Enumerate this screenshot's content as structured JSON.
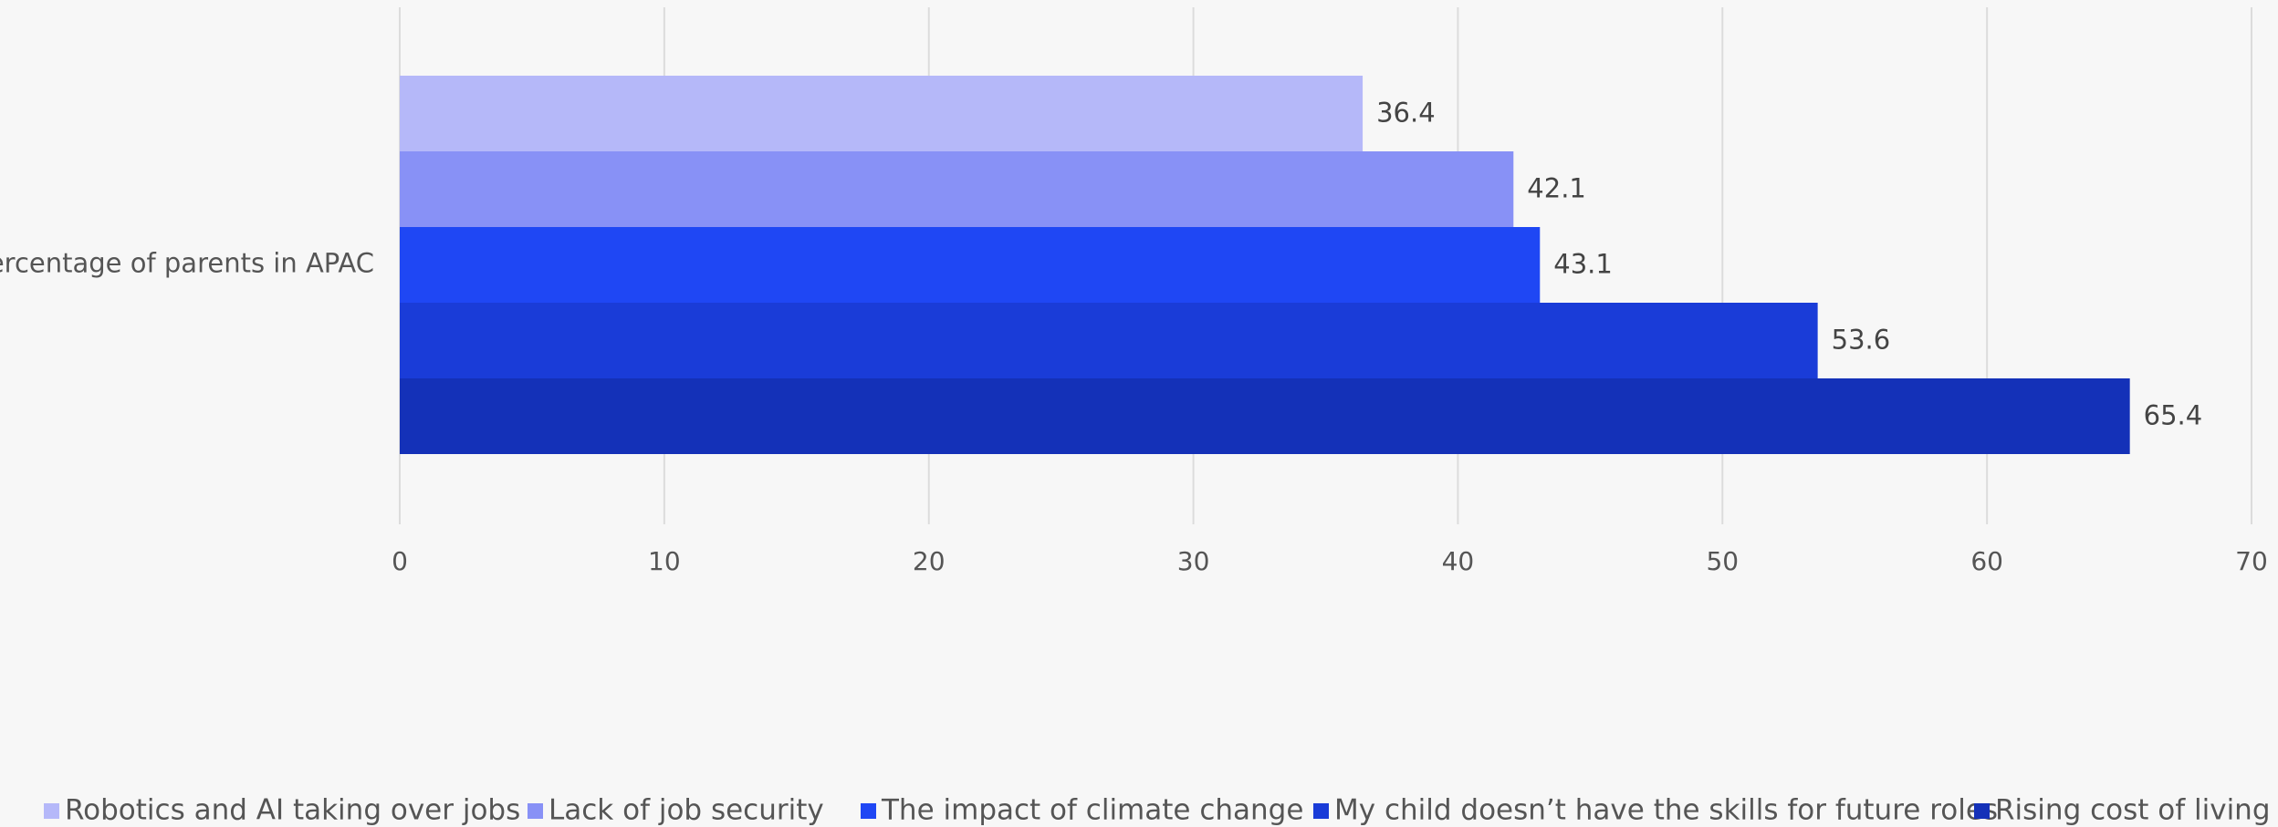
{
  "chart_data": {
    "type": "bar",
    "orientation": "horizontal",
    "categories": [
      "Percentage of parents in APAC"
    ],
    "series": [
      {
        "name": "Robotics and AI taking over jobs",
        "values": [
          36.4
        ],
        "color": "#b5b8f9"
      },
      {
        "name": "Lack of job security",
        "values": [
          42.1
        ],
        "color": "#8891f6"
      },
      {
        "name": "The impact of climate change",
        "values": [
          43.1
        ],
        "color": "#1f47f4"
      },
      {
        "name": "My child doesn’t have the skills for future roles",
        "values": [
          53.6
        ],
        "color": "#1a3cd8"
      },
      {
        "name": "Rising cost of living",
        "values": [
          65.4
        ],
        "color": "#1431b8"
      }
    ],
    "xlim": [
      0,
      70
    ],
    "xticks": [
      0,
      10,
      20,
      30,
      40,
      50,
      60,
      70
    ],
    "data_labels": true,
    "grid": "vertical",
    "legend": "bottom",
    "title": "",
    "xlabel": "",
    "ylabel": ""
  }
}
